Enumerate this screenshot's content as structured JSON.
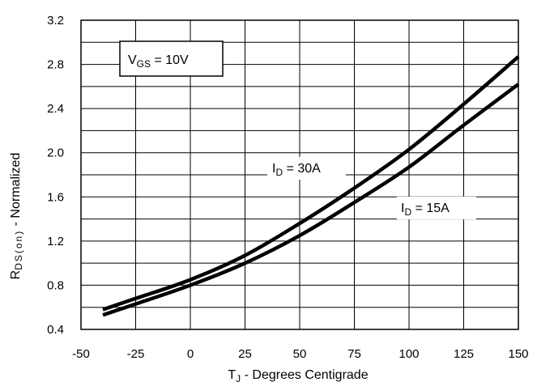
{
  "chart_data": {
    "type": "line",
    "xlabel": {
      "main": "T",
      "sub": "J",
      "rest": " - Degrees Centigrade"
    },
    "ylabel": {
      "main": "R",
      "sub": "DS(on)",
      "rest": " - Normalized"
    },
    "xlim": [
      -50,
      150
    ],
    "ylim": [
      0.4,
      3.2
    ],
    "x_ticks": [
      "-50",
      "-25",
      "0",
      "25",
      "50",
      "75",
      "100",
      "125",
      "150"
    ],
    "y_ticks": [
      "0.4",
      "0.8",
      "1.2",
      "1.6",
      "2.0",
      "2.4",
      "2.8",
      "3.2"
    ],
    "grid": true,
    "annotations": {
      "vgs": {
        "main": "V",
        "sub": "GS",
        "rest": " = 10V"
      }
    },
    "series": [
      {
        "name": {
          "main": "I",
          "sub": "D",
          "rest": " = 30A"
        },
        "x": [
          -40,
          -25,
          0,
          25,
          50,
          75,
          100,
          125,
          150
        ],
        "y": [
          0.58,
          0.68,
          0.85,
          1.07,
          1.36,
          1.68,
          2.03,
          2.44,
          2.87
        ],
        "color": "#000000"
      },
      {
        "name": {
          "main": "I",
          "sub": "D",
          "rest": " = 15A"
        },
        "x": [
          -40,
          -25,
          0,
          25,
          50,
          75,
          100,
          125,
          150
        ],
        "y": [
          0.53,
          0.63,
          0.8,
          1.0,
          1.25,
          1.55,
          1.87,
          2.25,
          2.62
        ],
        "color": "#000000"
      }
    ]
  }
}
